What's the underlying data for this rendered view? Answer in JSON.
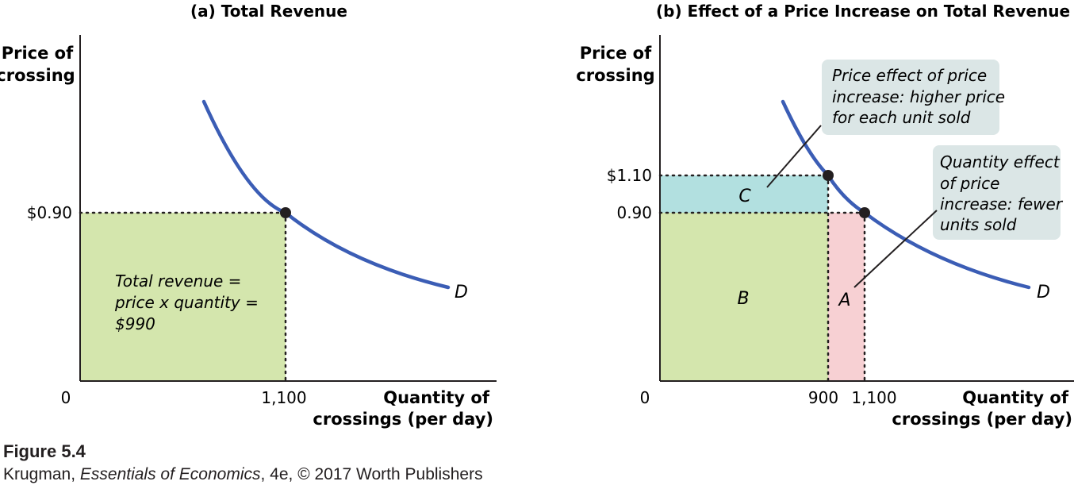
{
  "chart_data": [
    {
      "type": "line",
      "title": "(a) Total Revenue",
      "ylabel": [
        "Price of",
        "crossing"
      ],
      "xlabel": [
        "Quantity of",
        "crossings (per day)"
      ],
      "origin_label": "0",
      "x_ticks": [
        {
          "value": 1100,
          "label": "1,100"
        }
      ],
      "y_ticks": [
        {
          "value": 0.9,
          "label": "$0.90"
        }
      ],
      "series": [
        {
          "name": "D",
          "curve_label": "D",
          "color": "#3b5db5"
        }
      ],
      "points": [
        {
          "x": 1100,
          "y": 0.9
        }
      ],
      "regions": [
        {
          "x": [
            0,
            1100
          ],
          "y": [
            0,
            0.9
          ],
          "color": "#d4e6ad"
        }
      ],
      "annotation": [
        "Total revenue =",
        "price x quantity =",
        "$990"
      ]
    },
    {
      "type": "line",
      "title": "(b) Effect of a Price Increase on Total Revenue",
      "ylabel": [
        "Price of",
        "crossing"
      ],
      "xlabel": [
        "Quantity of",
        "crossings (per day)"
      ],
      "origin_label": "0",
      "x_ticks": [
        {
          "value": 900,
          "label": "900"
        },
        {
          "value": 1100,
          "label": "1,100"
        }
      ],
      "y_ticks": [
        {
          "value": 1.1,
          "label": "$1.10"
        },
        {
          "value": 0.9,
          "label": "0.90"
        }
      ],
      "series": [
        {
          "name": "D",
          "curve_label": "D",
          "color": "#3b5db5"
        }
      ],
      "points": [
        {
          "x": 900,
          "y": 1.1
        },
        {
          "x": 1100,
          "y": 0.9
        }
      ],
      "regions": [
        {
          "label": "C",
          "x": [
            0,
            900
          ],
          "y": [
            0.9,
            1.1
          ],
          "color": "#b2e0e0"
        },
        {
          "label": "B",
          "x": [
            0,
            900
          ],
          "y": [
            0,
            0.9
          ],
          "color": "#d4e6ad"
        },
        {
          "label": "A",
          "x": [
            900,
            1100
          ],
          "y": [
            0,
            0.9
          ],
          "color": "#f7d0d3"
        }
      ],
      "callouts": [
        {
          "lines": [
            "Price effect of price",
            "increase: higher price",
            "for each unit sold"
          ],
          "points_to": "C"
        },
        {
          "lines": [
            "Quantity effect",
            "of price",
            "increase: fewer",
            "units sold"
          ],
          "points_to": "A"
        }
      ]
    }
  ],
  "caption": {
    "figure": "Figure 5.4",
    "author": "Krugman, ",
    "book": "Essentials of Economics",
    "rest": ", 4e, © 2017 Worth Publishers"
  }
}
